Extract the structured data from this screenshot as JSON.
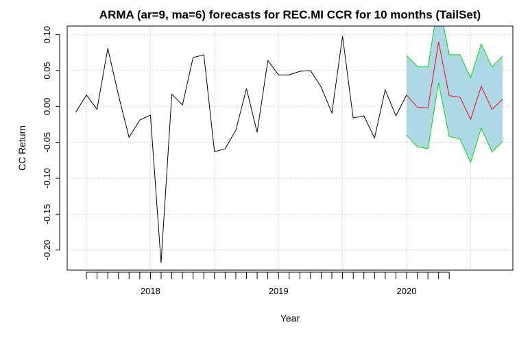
{
  "chart_data": {
    "type": "line",
    "title": "ARMA (ar=9, ma=6) forecasts for REC.MI CCR for 10 months (TailSet)",
    "xlabel": "Year",
    "ylabel": "CC Return",
    "x_tick_labels": [
      "2018",
      "2019",
      "2020"
    ],
    "x_tick_positions": [
      2018,
      2019,
      2020
    ],
    "y_ticks": [
      -0.2,
      -0.15,
      -0.1,
      -0.05,
      0.0,
      0.05,
      0.1
    ],
    "y_tick_labels": [
      "-0.20",
      "-0.15",
      "-0.10",
      "-0.05",
      "0.00",
      "0.05",
      "0.10"
    ],
    "xlim": [
      2017.35,
      2020.83
    ],
    "ylim": [
      -0.228,
      0.112
    ],
    "grid": true,
    "series": [
      {
        "role": "history",
        "color": "#000000",
        "x": [
          2017.417,
          2017.5,
          2017.583,
          2017.667,
          2017.75,
          2017.833,
          2017.917,
          2018.0,
          2018.083,
          2018.167,
          2018.25,
          2018.333,
          2018.417,
          2018.5,
          2018.583,
          2018.667,
          2018.75,
          2018.833,
          2018.917,
          2019.0,
          2019.083,
          2019.167,
          2019.25,
          2019.333,
          2019.417,
          2019.5,
          2019.583,
          2019.667,
          2019.75,
          2019.833,
          2019.917,
          2020.0
        ],
        "values": [
          -0.008,
          0.016,
          -0.004,
          0.081,
          0.016,
          -0.043,
          -0.019,
          -0.012,
          -0.218,
          0.017,
          0.002,
          0.068,
          0.072,
          -0.063,
          -0.059,
          -0.033,
          0.025,
          -0.036,
          0.064,
          0.044,
          0.044,
          0.049,
          0.05,
          0.027,
          -0.009,
          0.098,
          -0.016,
          -0.013,
          -0.044,
          0.023,
          -0.013,
          0.016
        ]
      },
      {
        "role": "forecast",
        "color": "#ff0000",
        "x": [
          2020.0,
          2020.083,
          2020.167,
          2020.25,
          2020.333,
          2020.417,
          2020.5,
          2020.583,
          2020.667,
          2020.75
        ],
        "values": [
          0.016,
          -0.001,
          -0.002,
          0.09,
          0.015,
          0.013,
          -0.018,
          0.028,
          -0.004,
          0.01
        ]
      },
      {
        "role": "upper-bound",
        "color": "#00dd00",
        "x": [
          2020.0,
          2020.083,
          2020.167,
          2020.25,
          2020.333,
          2020.417,
          2020.5,
          2020.583,
          2020.667,
          2020.75
        ],
        "values": [
          0.071,
          0.056,
          0.055,
          0.148,
          0.072,
          0.072,
          0.04,
          0.087,
          0.055,
          0.07
        ]
      },
      {
        "role": "lower-bound",
        "color": "#00dd00",
        "x": [
          2020.0,
          2020.083,
          2020.167,
          2020.25,
          2020.333,
          2020.417,
          2020.5,
          2020.583,
          2020.667,
          2020.75
        ],
        "values": [
          -0.04,
          -0.056,
          -0.059,
          0.033,
          -0.042,
          -0.045,
          -0.078,
          -0.03,
          -0.063,
          -0.049
        ]
      }
    ],
    "band_fill": "#add8e6",
    "grid_color": "#d3d3d3"
  }
}
